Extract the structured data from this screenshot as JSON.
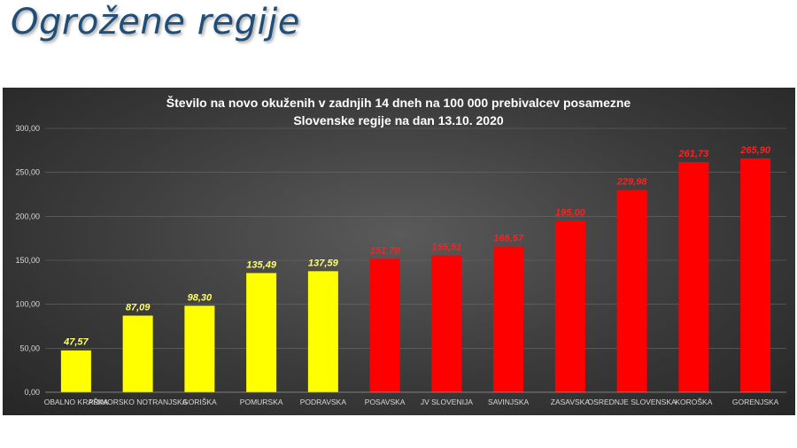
{
  "slide": {
    "title": "Ogrožene regije"
  },
  "chart_data": {
    "type": "bar",
    "title_lines": [
      "Število na novo okuženih v zadnjih 14 dneh na 100 000 prebivalcev posamezne",
      "Slovenske regije na dan 13.10. 2020"
    ],
    "categories": [
      "OBALNO KRAŠKA",
      "PRIMORSKO NOTRANJSKA",
      "GORIŠKA",
      "POMURSKA",
      "PODRAVSKA",
      "POSAVSKA",
      "JV SLOVENIJA",
      "SAVINJSKA",
      "ZASAVSKA",
      "OSREDNJE SLOVENSKA",
      "KOROŠKA",
      "GORENJSKA"
    ],
    "values": [
      47.57,
      87.09,
      98.3,
      135.49,
      137.59,
      151.7,
      155.51,
      165.57,
      195.0,
      229.98,
      261.73,
      265.9
    ],
    "value_labels": [
      "47,57",
      "87,09",
      "98,30",
      "135,49",
      "137,59",
      "151,70",
      "155,51",
      "165,57",
      "195,00",
      "229,98",
      "261,73",
      "265,90"
    ],
    "bar_colors": [
      "#ffff00",
      "#ffff00",
      "#ffff00",
      "#ffff00",
      "#ffff00",
      "#ff0000",
      "#ff0000",
      "#ff0000",
      "#ff0000",
      "#ff0000",
      "#ff0000",
      "#ff0000"
    ],
    "label_colors": [
      "#ffff66",
      "#ffff66",
      "#ffff66",
      "#ffff66",
      "#ffff66",
      "#ff2020",
      "#ff2020",
      "#ff2020",
      "#ff2020",
      "#ff2020",
      "#ff2020",
      "#ff2020"
    ],
    "ylim": [
      0,
      300
    ],
    "yticks": [
      0,
      50,
      100,
      150,
      200,
      250,
      300
    ],
    "ytick_labels": [
      "0,00",
      "50,00",
      "100,00",
      "150,00",
      "200,00",
      "250,00",
      "300,00"
    ],
    "grid": true,
    "legend": "none"
  }
}
